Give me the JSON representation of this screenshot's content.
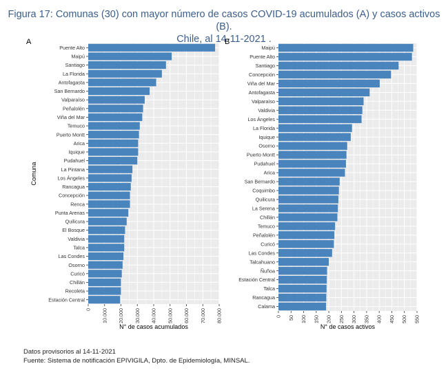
{
  "title": {
    "line1": "Figura 17: Comunas (30) con mayor número de casos COVID-19 acumulados (A) y casos activos (B).",
    "line2": "Chile, al 14-11-2021 ."
  },
  "footer": {
    "line1": "Datos provisorios al 14-11-2021",
    "line2": "Fuente: Sistema de notificación EPIVIGILA, Dpto. de Epidemiología, MINSAL."
  },
  "colors": {
    "bar": "#4a84bd",
    "panel": "#ebebeb",
    "grid": "#ffffff",
    "title": "#3b5e8c"
  },
  "chart_data": [
    {
      "type": "bar",
      "orientation": "horizontal",
      "panel_label": "A",
      "xlabel": "N° de casos acumulados",
      "ylabel": "Comuna",
      "xlim": [
        0,
        80000
      ],
      "xticks": [
        0,
        10000,
        20000,
        30000,
        40000,
        50000,
        60000,
        70000,
        80000
      ],
      "xtick_labels": [
        "0",
        "10.000",
        "20.000",
        "30.000",
        "40.000",
        "50.000",
        "60.000",
        "70.000",
        "80.000"
      ],
      "categories": [
        "Puente Alto",
        "Maipú",
        "Santiago",
        "La Florida",
        "Antofagasta",
        "San Bernardo",
        "Valparaíso",
        "Peñalolén",
        "Viña del Mar",
        "Temuco",
        "Puerto Montt",
        "Arica",
        "Iquique",
        "Pudahuel",
        "La Pintana",
        "Los Ángeles",
        "Rancagua",
        "Concepción",
        "Renca",
        "Punta Arenas",
        "Quilicura",
        "El Bosque",
        "Valdivia",
        "Talca",
        "Las Condes",
        "Osorno",
        "Curicó",
        "Chillán",
        "Recoleta",
        "Estación Central"
      ],
      "values": [
        77500,
        51000,
        47500,
        45000,
        41500,
        37500,
        34500,
        33500,
        33000,
        31500,
        31000,
        30500,
        30500,
        30000,
        27000,
        26500,
        26000,
        25500,
        25500,
        24500,
        23500,
        22500,
        22000,
        22000,
        21500,
        21000,
        20500,
        20000,
        20000,
        19500
      ]
    },
    {
      "type": "bar",
      "orientation": "horizontal",
      "panel_label": "B",
      "xlabel": "N° de casos activos",
      "ylabel": "",
      "xlim": [
        0,
        550
      ],
      "xticks": [
        0,
        50,
        100,
        150,
        200,
        250,
        300,
        350,
        400,
        450,
        500,
        550
      ],
      "xtick_labels": [
        "0",
        "50",
        "100",
        "150",
        "200",
        "250",
        "300",
        "350",
        "400",
        "450",
        "500",
        "550"
      ],
      "categories": [
        "Maipú",
        "Puente Alto",
        "Santiago",
        "Concepción",
        "Viña del Mar",
        "Antofagasta",
        "Valparaíso",
        "Valdivia",
        "Los Ángeles",
        "La Florida",
        "Iquique",
        "Osorno",
        "Puerto Montt",
        "Pudahuel",
        "Arica",
        "San Bernardo",
        "Coquimbo",
        "Quilicura",
        "La Serena",
        "Chillán",
        "Temuco",
        "Peñalolén",
        "Curicó",
        "Las Condes",
        "Talcahuano",
        "Ñuñoa",
        "Estación Central",
        "Talca",
        "Rancagua",
        "Calama"
      ],
      "values": [
        535,
        530,
        477,
        447,
        402,
        362,
        338,
        333,
        330,
        292,
        287,
        273,
        270,
        268,
        264,
        243,
        240,
        238,
        236,
        234,
        225,
        222,
        220,
        213,
        200,
        193,
        192,
        191,
        190,
        189
      ]
    }
  ]
}
